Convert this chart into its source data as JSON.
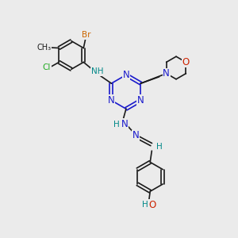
{
  "background_color": "#ebebeb",
  "colors": {
    "bond": "#1a1a1a",
    "N": "#1a1acc",
    "O": "#cc2200",
    "Br": "#cc6600",
    "Cl": "#22aa22",
    "H": "#008888",
    "C": "#1a1a1a"
  },
  "figsize": [
    3.0,
    3.0
  ],
  "dpi": 100
}
